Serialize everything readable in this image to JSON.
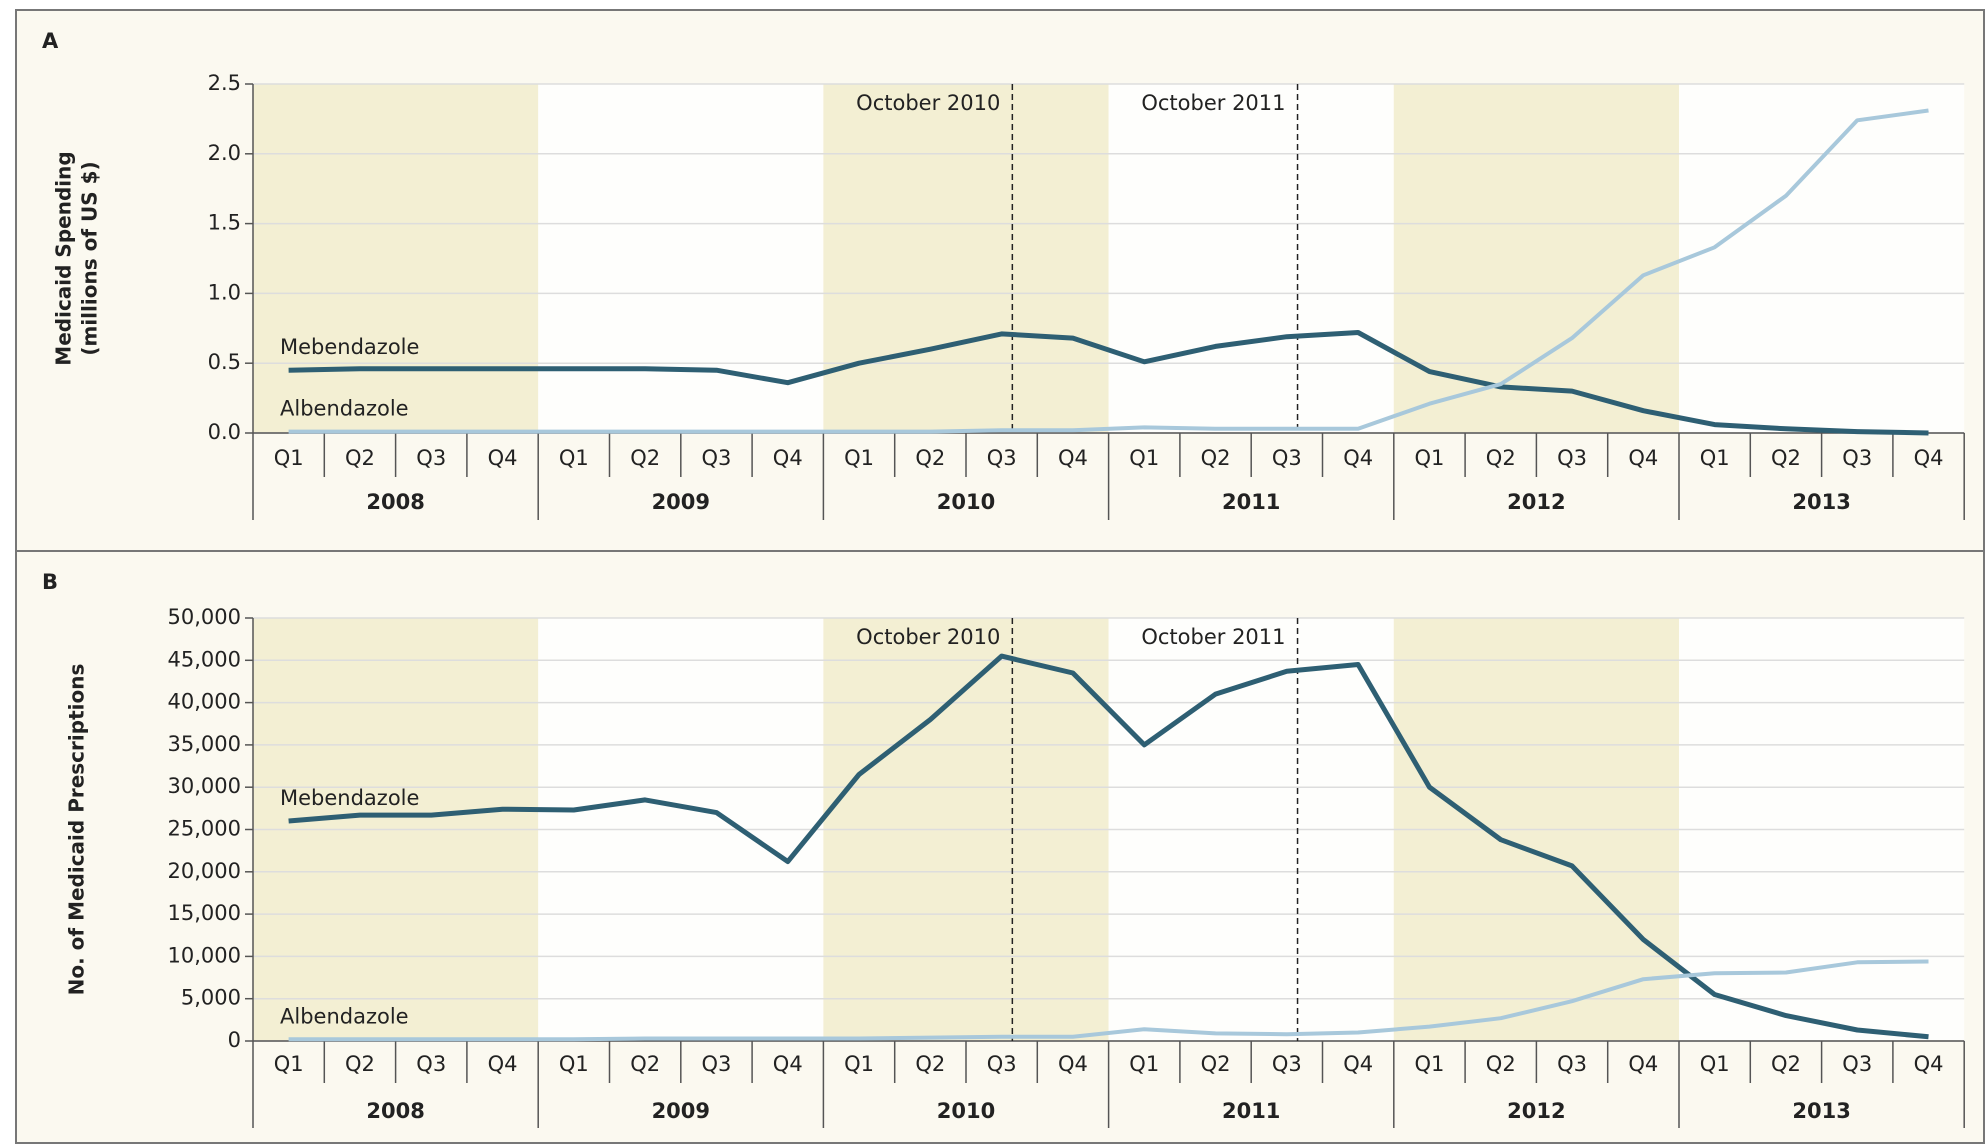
{
  "chart_data": [
    {
      "type": "line",
      "panel": "A",
      "y_label": [
        "Medicaid Spending",
        "(millions of US $)"
      ],
      "categories": [
        "Q1",
        "Q2",
        "Q3",
        "Q4",
        "Q1",
        "Q2",
        "Q3",
        "Q4",
        "Q1",
        "Q2",
        "Q3",
        "Q4",
        "Q1",
        "Q2",
        "Q3",
        "Q4",
        "Q1",
        "Q2",
        "Q3",
        "Q4",
        "Q1",
        "Q2",
        "Q3",
        "Q4"
      ],
      "years": [
        "2008",
        "2009",
        "2010",
        "2011",
        "2012",
        "2013"
      ],
      "annotations": [
        "October 2010",
        "October 2011"
      ],
      "series": [
        {
          "name": "Mebendazole",
          "color": "#2e5f73",
          "values": [
            0.45,
            0.46,
            0.46,
            0.46,
            0.46,
            0.46,
            0.45,
            0.36,
            0.5,
            0.6,
            0.71,
            0.68,
            0.51,
            0.62,
            0.69,
            0.72,
            0.44,
            0.33,
            0.3,
            0.16,
            0.06,
            0.03,
            0.01,
            0.0
          ]
        },
        {
          "name": "Albendazole",
          "color": "#a8c8db",
          "values": [
            0.01,
            0.01,
            0.01,
            0.01,
            0.01,
            0.01,
            0.01,
            0.01,
            0.01,
            0.01,
            0.02,
            0.02,
            0.04,
            0.03,
            0.03,
            0.03,
            0.21,
            0.35,
            0.68,
            1.13,
            1.33,
            1.7,
            2.24,
            2.31
          ]
        }
      ],
      "ylim": [
        0,
        2.5
      ],
      "yticks": [
        {
          "value": 0,
          "label": "0.0"
        },
        0.5,
        {
          "value": 1,
          "label": "1.0"
        },
        1.5,
        {
          "value": 2,
          "label": "2.0"
        },
        2.5
      ],
      "grid": true,
      "band_color": "#f3efd3"
    },
    {
      "type": "line",
      "panel": "B",
      "y_label": [
        "No. of Medicaid Prescriptions"
      ],
      "categories": [
        "Q1",
        "Q2",
        "Q3",
        "Q4",
        "Q1",
        "Q2",
        "Q3",
        "Q4",
        "Q1",
        "Q2",
        "Q3",
        "Q4",
        "Q1",
        "Q2",
        "Q3",
        "Q4",
        "Q1",
        "Q2",
        "Q3",
        "Q4",
        "Q1",
        "Q2",
        "Q3",
        "Q4"
      ],
      "years": [
        "2008",
        "2009",
        "2010",
        "2011",
        "2012",
        "2013"
      ],
      "annotations": [
        "October 2010",
        "October 2011"
      ],
      "series": [
        {
          "name": "Mebendazole",
          "color": "#2e5f73",
          "values": [
            26000,
            26700,
            26700,
            27400,
            27300,
            28500,
            27000,
            21200,
            31500,
            38000,
            45500,
            43500,
            35000,
            41000,
            43700,
            44500,
            30000,
            23800,
            20700,
            12000,
            5500,
            3000,
            1300,
            500
          ]
        },
        {
          "name": "Albendazole",
          "color": "#a8c8db",
          "values": [
            200,
            200,
            200,
            200,
            200,
            300,
            300,
            300,
            300,
            400,
            500,
            500,
            1400,
            900,
            800,
            1000,
            1700,
            2700,
            4700,
            7300,
            8000,
            8100,
            9300,
            9400
          ]
        }
      ],
      "ylim": [
        0,
        50000
      ],
      "yticks": [
        0,
        {
          "value": 5000,
          "label": "5,000"
        },
        {
          "value": 10000,
          "label": "10,000"
        },
        {
          "value": 15000,
          "label": "15,000"
        },
        {
          "value": 20000,
          "label": "20,000"
        },
        {
          "value": 25000,
          "label": "25,000"
        },
        {
          "value": 30000,
          "label": "30,000"
        },
        {
          "value": 35000,
          "label": "35,000"
        },
        {
          "value": 40000,
          "label": "40,000"
        },
        {
          "value": 45000,
          "label": "45,000"
        },
        {
          "value": 50000,
          "label": "50,000"
        }
      ],
      "grid": true,
      "band_color": "#f3efd3"
    }
  ]
}
